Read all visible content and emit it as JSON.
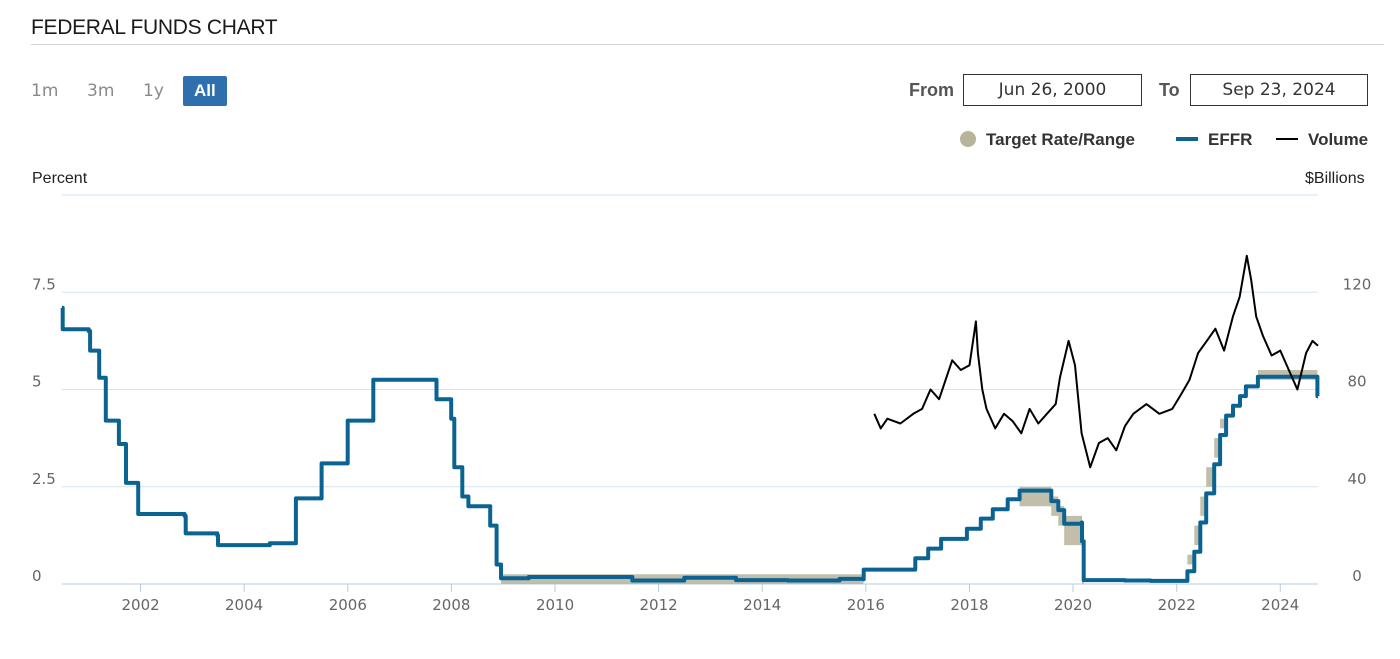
{
  "header": {
    "title": "FEDERAL FUNDS CHART"
  },
  "range_buttons": [
    {
      "label": "1m",
      "active": false
    },
    {
      "label": "3m",
      "active": false
    },
    {
      "label": "1y",
      "active": false
    },
    {
      "label": "All",
      "active": true
    }
  ],
  "date_range": {
    "from_label": "From",
    "from_value": "Jun 26, 2000",
    "to_label": "To",
    "to_value": "Sep 23, 2024"
  },
  "legend": [
    {
      "label": "Target Rate/Range",
      "color": "#b8b39b",
      "shape": "dot"
    },
    {
      "label": "EFFR",
      "color": "#0b6392",
      "shape": "line"
    },
    {
      "label": "Volume",
      "color": "#000000",
      "shape": "line"
    }
  ],
  "axes": {
    "left_title": "Percent",
    "right_title": "$Billions",
    "left_ticks": [
      "0",
      "2.5",
      "5",
      "7.5"
    ],
    "right_ticks": [
      "0",
      "40",
      "80",
      "120"
    ],
    "x_ticks": [
      "2002",
      "2004",
      "2006",
      "2008",
      "2010",
      "2012",
      "2014",
      "2016",
      "2018",
      "2020",
      "2022",
      "2024"
    ]
  },
  "colors": {
    "effr": "#0b6392",
    "target": "#b8b39b",
    "volume": "#000000",
    "active_button": "#2f6fae"
  },
  "chart_data": {
    "type": "line",
    "x_range": [
      "2000-06-26",
      "2024-09-23"
    ],
    "y_left_range": [
      0,
      10
    ],
    "y_right_range": [
      0,
      160
    ],
    "grid": true,
    "legend_position": "top-right",
    "series": [
      {
        "name": "EFFR",
        "axis": "left",
        "points": [
          [
            "2000-06-26",
            7.1
          ],
          [
            "2000-07-01",
            6.55
          ],
          [
            "2000-12-31",
            6.5
          ],
          [
            "2001-01-10",
            6.0
          ],
          [
            "2001-03-15",
            5.3
          ],
          [
            "2001-05-01",
            4.2
          ],
          [
            "2001-08-01",
            3.6
          ],
          [
            "2001-09-20",
            2.6
          ],
          [
            "2001-12-15",
            1.8
          ],
          [
            "2002-11-07",
            1.75
          ],
          [
            "2002-11-15",
            1.3
          ],
          [
            "2003-06-26",
            1.25
          ],
          [
            "2003-07-01",
            1.0
          ],
          [
            "2004-06-30",
            1.05
          ],
          [
            "2004-12-31",
            2.2
          ],
          [
            "2005-06-30",
            3.1
          ],
          [
            "2005-12-31",
            4.2
          ],
          [
            "2006-06-30",
            5.25
          ],
          [
            "2007-08-01",
            5.25
          ],
          [
            "2007-09-18",
            4.75
          ],
          [
            "2007-12-31",
            4.25
          ],
          [
            "2008-01-22",
            3.0
          ],
          [
            "2008-03-18",
            2.25
          ],
          [
            "2008-04-30",
            2.0
          ],
          [
            "2008-10-01",
            1.5
          ],
          [
            "2008-11-15",
            0.5
          ],
          [
            "2008-12-16",
            0.15
          ],
          [
            "2009-06-30",
            0.18
          ],
          [
            "2010-12-31",
            0.18
          ],
          [
            "2011-06-30",
            0.09
          ],
          [
            "2012-06-30",
            0.16
          ],
          [
            "2013-06-30",
            0.1
          ],
          [
            "2014-06-30",
            0.09
          ],
          [
            "2015-06-30",
            0.13
          ],
          [
            "2015-12-16",
            0.12
          ],
          [
            "2015-12-17",
            0.37
          ],
          [
            "2016-12-14",
            0.41
          ],
          [
            "2016-12-15",
            0.66
          ],
          [
            "2017-03-16",
            0.91
          ],
          [
            "2017-06-15",
            1.16
          ],
          [
            "2017-12-14",
            1.42
          ],
          [
            "2018-03-22",
            1.68
          ],
          [
            "2018-06-14",
            1.92
          ],
          [
            "2018-09-27",
            2.18
          ],
          [
            "2018-12-20",
            2.4
          ],
          [
            "2019-07-31",
            2.4
          ],
          [
            "2019-08-01",
            2.13
          ],
          [
            "2019-09-19",
            1.9
          ],
          [
            "2019-10-31",
            1.55
          ],
          [
            "2020-03-03",
            1.58
          ],
          [
            "2020-03-04",
            1.1
          ],
          [
            "2020-03-16",
            0.1
          ],
          [
            "2020-12-31",
            0.09
          ],
          [
            "2021-06-30",
            0.08
          ],
          [
            "2022-03-16",
            0.08
          ],
          [
            "2022-03-17",
            0.33
          ],
          [
            "2022-05-05",
            0.83
          ],
          [
            "2022-06-16",
            1.58
          ],
          [
            "2022-07-28",
            2.33
          ],
          [
            "2022-09-22",
            3.08
          ],
          [
            "2022-11-03",
            3.83
          ],
          [
            "2022-12-15",
            4.33
          ],
          [
            "2023-02-02",
            4.58
          ],
          [
            "2023-03-23",
            4.83
          ],
          [
            "2023-05-04",
            5.08
          ],
          [
            "2023-07-27",
            5.33
          ],
          [
            "2024-09-18",
            5.33
          ],
          [
            "2024-09-19",
            4.83
          ],
          [
            "2024-09-23",
            4.83
          ]
        ]
      },
      {
        "name": "Target Rate/Range",
        "axis": "left",
        "points": [
          [
            "2008-12-16",
            0.0,
            0.25
          ],
          [
            "2015-12-16",
            0.0,
            0.25
          ],
          [
            "2015-12-17",
            0.25,
            0.5
          ],
          [
            "2016-12-15",
            0.5,
            0.75
          ],
          [
            "2017-03-16",
            0.75,
            1.0
          ],
          [
            "2017-06-15",
            1.0,
            1.25
          ],
          [
            "2017-12-14",
            1.25,
            1.5
          ],
          [
            "2018-03-22",
            1.5,
            1.75
          ],
          [
            "2018-06-14",
            1.75,
            2.0
          ],
          [
            "2018-09-27",
            2.0,
            2.25
          ],
          [
            "2018-12-20",
            2.25,
            2.5
          ],
          [
            "2019-08-01",
            2.0,
            2.25
          ],
          [
            "2019-09-19",
            1.75,
            2.0
          ],
          [
            "2019-10-31",
            1.5,
            1.75
          ],
          [
            "2020-03-04",
            1.0,
            1.25
          ],
          [
            "2020-03-16",
            0.0,
            0.25
          ],
          [
            "2022-03-17",
            0.25,
            0.5
          ],
          [
            "2022-05-05",
            0.75,
            1.0
          ],
          [
            "2022-06-16",
            1.5,
            1.75
          ],
          [
            "2022-07-28",
            2.25,
            2.5
          ],
          [
            "2022-09-22",
            3.0,
            3.25
          ],
          [
            "2022-11-03",
            3.75,
            4.0
          ],
          [
            "2022-12-15",
            4.25,
            4.5
          ],
          [
            "2023-02-02",
            4.5,
            4.75
          ],
          [
            "2023-03-23",
            4.75,
            5.0
          ],
          [
            "2023-05-04",
            5.0,
            5.25
          ],
          [
            "2023-07-27",
            5.25,
            5.5
          ],
          [
            "2024-09-18",
            5.25,
            5.5
          ],
          [
            "2024-09-19",
            4.75,
            5.0
          ],
          [
            "2024-09-23",
            4.75,
            5.0
          ]
        ]
      },
      {
        "name": "Volume",
        "axis": "right",
        "points": [
          [
            "2016-03-01",
            70
          ],
          [
            "2016-04-15",
            64
          ],
          [
            "2016-06-01",
            68
          ],
          [
            "2016-09-01",
            66
          ],
          [
            "2016-12-01",
            70
          ],
          [
            "2017-02-01",
            72
          ],
          [
            "2017-04-01",
            80
          ],
          [
            "2017-06-01",
            76
          ],
          [
            "2017-09-01",
            92
          ],
          [
            "2017-11-01",
            88
          ],
          [
            "2018-01-01",
            90
          ],
          [
            "2018-02-15",
            108
          ],
          [
            "2018-03-01",
            95
          ],
          [
            "2018-04-01",
            80
          ],
          [
            "2018-05-01",
            72
          ],
          [
            "2018-07-01",
            64
          ],
          [
            "2018-09-01",
            70
          ],
          [
            "2018-11-01",
            67
          ],
          [
            "2019-01-01",
            62
          ],
          [
            "2019-03-01",
            72
          ],
          [
            "2019-05-01",
            66
          ],
          [
            "2019-07-01",
            70
          ],
          [
            "2019-09-01",
            74
          ],
          [
            "2019-10-01",
            85
          ],
          [
            "2019-12-01",
            100
          ],
          [
            "2020-01-15",
            90
          ],
          [
            "2020-03-01",
            62
          ],
          [
            "2020-05-01",
            48
          ],
          [
            "2020-07-01",
            58
          ],
          [
            "2020-09-01",
            60
          ],
          [
            "2020-11-01",
            55
          ],
          [
            "2021-01-01",
            65
          ],
          [
            "2021-03-01",
            70
          ],
          [
            "2021-06-01",
            74
          ],
          [
            "2021-09-01",
            70
          ],
          [
            "2021-12-01",
            72
          ],
          [
            "2022-02-01",
            78
          ],
          [
            "2022-04-01",
            84
          ],
          [
            "2022-06-01",
            95
          ],
          [
            "2022-08-01",
            100
          ],
          [
            "2022-10-01",
            105
          ],
          [
            "2022-12-01",
            96
          ],
          [
            "2023-02-01",
            110
          ],
          [
            "2023-03-20",
            118
          ],
          [
            "2023-05-10",
            135
          ],
          [
            "2023-06-10",
            125
          ],
          [
            "2023-07-15",
            110
          ],
          [
            "2023-09-01",
            102
          ],
          [
            "2023-11-01",
            94
          ],
          [
            "2024-01-01",
            96
          ],
          [
            "2024-03-01",
            88
          ],
          [
            "2024-05-01",
            80
          ],
          [
            "2024-07-01",
            95
          ],
          [
            "2024-08-15",
            100
          ],
          [
            "2024-09-23",
            98
          ]
        ]
      }
    ]
  }
}
